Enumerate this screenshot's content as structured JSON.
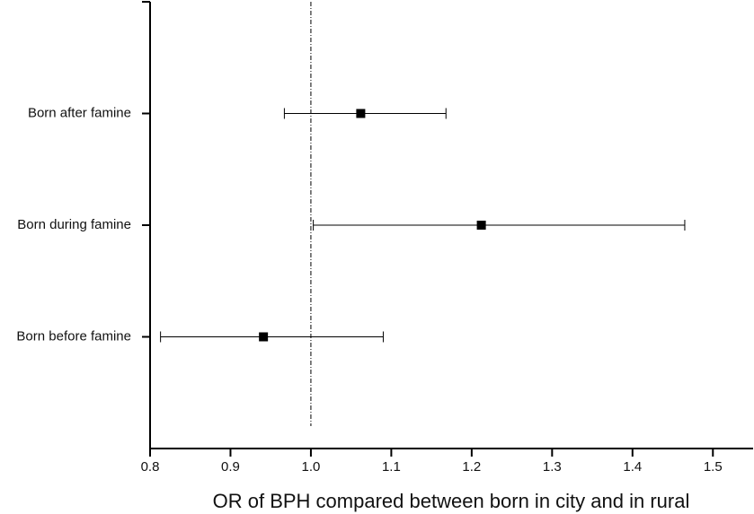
{
  "chart_data": {
    "type": "forest",
    "x_label": "OR of BPH compared between born in city and in rural",
    "categories": [
      "Born after famine",
      "Born during famine",
      "Born before famine"
    ],
    "values": [
      1.062,
      1.212,
      0.941
    ],
    "lower": [
      0.967,
      1.003,
      0.813
    ],
    "upper": [
      1.168,
      1.465,
      1.09
    ],
    "color": "#000000",
    "reference_line": 1,
    "xlim": [
      0.8,
      1.55
    ],
    "xticks": [
      0.8,
      0.9,
      {
        "value": 1,
        "label": "1.0"
      },
      1.1,
      1.2,
      1.3,
      1.4,
      1.5
    ]
  }
}
